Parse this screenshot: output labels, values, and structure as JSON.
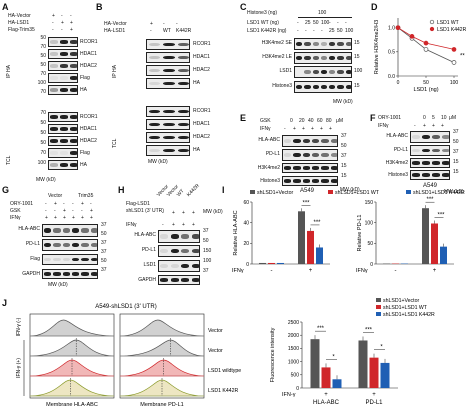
{
  "panels": {
    "A": "A",
    "B": "B",
    "C": "C",
    "D": "D",
    "E": "E",
    "F": "F",
    "G": "G",
    "H": "H",
    "I": "I",
    "J": "J"
  },
  "A": {
    "rows": [
      "HA-Vector",
      "HA-LSD1",
      "Flag-Trim35"
    ],
    "signs": [
      [
        "+",
        "-",
        "-"
      ],
      [
        "-",
        "+",
        "+"
      ],
      [
        "-",
        "-",
        "+"
      ]
    ],
    "ip_label": "IP HA",
    "tcl_label": "TCL",
    "ip_bands": [
      "RCOR1",
      "HDAC1",
      "HDAC2",
      "Flag",
      "HA"
    ],
    "tcl_bands": [
      "RCOR1",
      "HDAC1",
      "HDAC2",
      "Flag",
      "HA"
    ],
    "mw_ip": [
      "50",
      "70",
      "50",
      "50",
      "70",
      "100",
      "70"
    ],
    "mw_tcl": [
      "70",
      "50",
      "50",
      "50",
      "70",
      "100"
    ],
    "mw": "MW (kD)"
  },
  "B": {
    "rows": [
      "HA-Vector",
      "HA-LSD1"
    ],
    "cols": [
      "WT",
      "K442R"
    ],
    "sign_vec": [
      "+",
      "-",
      "-"
    ],
    "sign_lsd": [
      "-",
      "WT",
      "K442R"
    ],
    "ip_label": "IP HA",
    "tcl_label": "TCL",
    "ip_bands": [
      "RCOR1",
      "HDAC1",
      "HDAC2",
      "HA"
    ],
    "tcl_bands": [
      "RCOR1",
      "HDAC1",
      "HDAC2",
      "HA"
    ],
    "mw": "MW (kD)"
  },
  "C": {
    "top": "Histone3 (ng)",
    "top_val": "100",
    "rows": [
      "LSD1 WT (ng)",
      "LSD1 K442R (ng)"
    ],
    "wt": [
      "-",
      "25",
      "50",
      "100",
      "-",
      "-",
      "-"
    ],
    "k442r": [
      "-",
      "-",
      "-",
      "-",
      "25",
      "50",
      "100"
    ],
    "bands": [
      "H3K4me2 SE",
      "H3K4me2 LE",
      "LSD1",
      "Histone3"
    ],
    "mw": "MW (kD)",
    "mw_vals": [
      "15",
      "15",
      "100",
      "15"
    ]
  },
  "D": {
    "ylabel": "Relative H3K4me2/H3",
    "xlabel": "LSD1 (ng)",
    "legend": [
      "LSD1 WT",
      "LSD1 K442R"
    ],
    "sig": "**"
  },
  "E": {
    "gsk": "GSK",
    "gsk_vals": [
      "0",
      "20",
      "40",
      "60",
      "80"
    ],
    "unit": "μM",
    "ifn": "IFNγ",
    "ifn_vals": [
      "-",
      "+",
      "+",
      "+",
      "+",
      "+"
    ],
    "bands": [
      "HLA-ABC",
      "PD-L1",
      "H3K4me2",
      "Histone3"
    ],
    "mw_vals": [
      "37",
      "50",
      "37",
      "15",
      "15"
    ],
    "cell": "A549",
    "mw": "MW (kD)"
  },
  "F": {
    "ory": "ORY-1001",
    "ory_vals": [
      "0",
      "5",
      "10"
    ],
    "unit": "μM",
    "ifn": "IFNγ",
    "ifn_vals": [
      "-",
      "+",
      "+",
      "+"
    ],
    "bands": [
      "HLA-ABC",
      "PD-L1",
      "H3K4me2",
      "Histone3"
    ],
    "cell": "A549",
    "mw": "MW (kD)",
    "mw_vals": [
      "37",
      "50",
      "37",
      "15",
      "15"
    ]
  },
  "G": {
    "groups": [
      "Vector",
      "Trim35"
    ],
    "ory": "ORY-1001",
    "gsk": "GSK",
    "ifn": "IFNγ",
    "ory_s": [
      "-",
      "+",
      "-",
      "-",
      "+",
      "-"
    ],
    "gsk_s": [
      "-",
      "-",
      "+",
      "-",
      "-",
      "+"
    ],
    "ifn_s": [
      "+",
      "+",
      "+",
      "+",
      "+",
      "+"
    ],
    "bands": [
      "HLA-ABC",
      "PD-L1",
      "Flag",
      "GAPDH"
    ],
    "mw_vals": [
      "37",
      "50",
      "37",
      "37",
      "50",
      "37"
    ],
    "mw": "MW (kD)"
  },
  "H": {
    "flag": "Flag-LSD1",
    "sh": "shLSD1\n(3' UTR)",
    "cols": [
      "Vector",
      "Vector",
      "WT",
      "K442R"
    ],
    "ifn": "IFNγ",
    "ifn_s": [
      "-",
      "+",
      "+",
      "+"
    ],
    "sh_s": [
      "-",
      "+",
      "+",
      "+"
    ],
    "bands": [
      "HLA-ABC",
      "PD-L1",
      "LSD1",
      "GAPDH"
    ],
    "mw_vals": [
      "37",
      "50",
      "150",
      "100",
      "37"
    ],
    "mw": "MW (kD)"
  },
  "I": {
    "legend": [
      "shLSD1+Vector",
      "shLSD1+LSD1 WT",
      "shLSD1+LSD1 K442R"
    ],
    "ylabel1": "Relative HLA-ABC",
    "ylabel2": "Relative PD-L1",
    "ifn": "IFNγ",
    "ifn_vals": [
      "-",
      "+"
    ],
    "sig": "***"
  },
  "J": {
    "title": "A549-shLSD1 (3' UTR)",
    "row_labels": [
      "IFN-γ (-)",
      "IFN-γ (+)"
    ],
    "trace_labels": [
      "Vector",
      "Vector",
      "LSD1 wildtype",
      "LSD1 K442R"
    ],
    "xlabels": [
      "Membrane HLA-ABC",
      "Membrane PD-L1"
    ],
    "bar_legend": [
      "shLSD1+Vector",
      "shLSD1+LSD1 WT",
      "shLSD1+LSD1 K442R"
    ],
    "bar_ylabel": "Fluorescence intensity",
    "bar_ifn": "IFN-γ",
    "bar_cats": [
      "HLA-ABC",
      "PD-L1"
    ],
    "sig1": "***",
    "sig2": "*"
  },
  "colors": {
    "vector": "#555555",
    "wt": "#d0262a",
    "k442r": "#1f5fb4"
  },
  "chart_data": [
    {
      "type": "line",
      "panel": "D",
      "x": [
        0,
        25,
        50,
        100
      ],
      "xlabel": "LSD1 (ng)",
      "ylabel": "Relative H3K4me2/H3",
      "ylim": [
        0,
        1.2
      ],
      "xticks": [
        0,
        50,
        100
      ],
      "yticks": [
        0,
        0.5,
        1.0
      ],
      "series": [
        {
          "name": "LSD1 WT",
          "values": [
            1.0,
            0.78,
            0.55,
            0.28
          ]
        },
        {
          "name": "LSD1 K442R",
          "values": [
            1.0,
            0.82,
            0.68,
            0.55
          ]
        }
      ]
    },
    {
      "type": "bar",
      "panel": "I-left",
      "categories": [
        "-",
        "+"
      ],
      "ylabel": "Relative HLA-ABC",
      "ylim": [
        0,
        60
      ],
      "yticks": [
        0,
        20,
        40,
        60
      ],
      "series": [
        {
          "name": "shLSD1+Vector",
          "values": [
            1,
            51
          ]
        },
        {
          "name": "shLSD1+LSD1 WT",
          "values": [
            1,
            32
          ]
        },
        {
          "name": "shLSD1+LSD1 K442R",
          "values": [
            1,
            16
          ]
        }
      ]
    },
    {
      "type": "bar",
      "panel": "I-right",
      "categories": [
        "-",
        "+"
      ],
      "ylabel": "Relative PD-L1",
      "ylim": [
        0,
        150
      ],
      "yticks": [
        0,
        50,
        100,
        150
      ],
      "series": [
        {
          "name": "shLSD1+Vector",
          "values": [
            1,
            135
          ]
        },
        {
          "name": "shLSD1+LSD1 WT",
          "values": [
            1,
            98
          ]
        },
        {
          "name": "shLSD1+LSD1 K442R",
          "values": [
            1,
            42
          ]
        }
      ]
    },
    {
      "type": "bar",
      "panel": "J-right",
      "categories": [
        "HLA-ABC",
        "PD-L1"
      ],
      "ylabel": "Fluorescence intensity",
      "ylim": [
        0,
        2500
      ],
      "yticks": [
        0,
        500,
        1000,
        1500,
        2000,
        2500
      ],
      "series": [
        {
          "name": "shLSD1+Vector",
          "values": [
            1850,
            1800
          ]
        },
        {
          "name": "shLSD1+LSD1 WT",
          "values": [
            780,
            1150
          ]
        },
        {
          "name": "shLSD1+LSD1 K442R",
          "values": [
            330,
            950
          ]
        }
      ]
    }
  ]
}
